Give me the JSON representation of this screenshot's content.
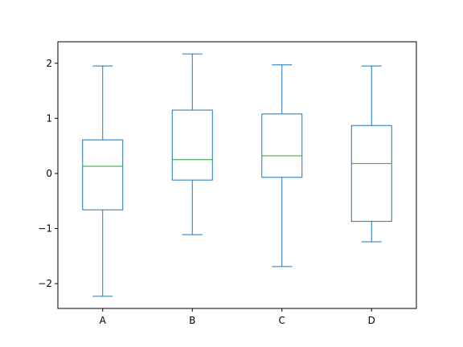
{
  "chart_data": {
    "type": "box",
    "title": "",
    "xlabel": "",
    "ylabel": "",
    "categories": [
      "A",
      "B",
      "C",
      "D"
    ],
    "boxes": [
      {
        "category": "A",
        "whisker_low": -2.23,
        "q1": -0.66,
        "median": 0.13,
        "q3": 0.61,
        "whisker_high": 1.95
      },
      {
        "category": "B",
        "whisker_low": -1.11,
        "q1": -0.12,
        "median": 0.25,
        "q3": 1.15,
        "whisker_high": 2.17
      },
      {
        "category": "C",
        "whisker_low": -1.69,
        "q1": -0.07,
        "median": 0.32,
        "q3": 1.08,
        "whisker_high": 1.97
      },
      {
        "category": "D",
        "whisker_low": -1.24,
        "q1": -0.87,
        "median": 0.18,
        "q3": 0.87,
        "whisker_high": 1.95
      }
    ],
    "yticks": [
      -2,
      -1,
      0,
      1,
      2
    ],
    "ytick_labels": [
      "−2",
      "−1",
      "0",
      "1",
      "2"
    ],
    "ylim": [
      -2.45,
      2.39
    ],
    "grid": false,
    "colors": {
      "box": "#1f77b4",
      "median": "#2ca02c"
    }
  }
}
